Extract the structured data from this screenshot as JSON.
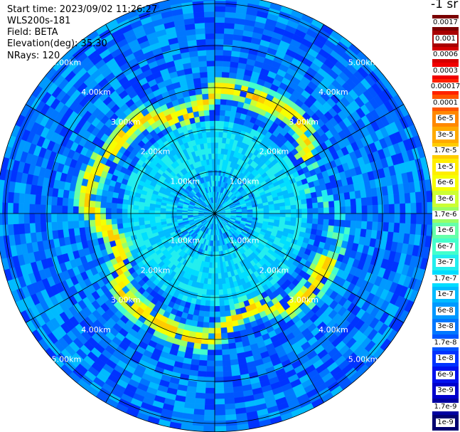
{
  "header": {
    "start_time": "Start time: 2023/09/02 11:26:27",
    "instrument": "WLS200s-181",
    "field": "Field: BETA",
    "elevation": "Elevation(deg): 35.30",
    "nrays": "NRays: 120"
  },
  "colorbar": {
    "unit_label": "-1 sr",
    "levels": [
      {
        "label": "0.0017",
        "color": "#7a0000"
      },
      {
        "label": "0.001",
        "color": "#a80000"
      },
      {
        "label": "0.0006",
        "color": "#d40000"
      },
      {
        "label": "0.0003",
        "color": "#f00000"
      },
      {
        "label": "0.00017",
        "color": "#ff2200"
      },
      {
        "label": "0.0001",
        "color": "#ff5500"
      },
      {
        "label": "6e-5",
        "color": "#ff8800"
      },
      {
        "label": "3e-5",
        "color": "#ffaa00"
      },
      {
        "label": "1.7e-5",
        "color": "#ffcc00"
      },
      {
        "label": "1e-5",
        "color": "#ffee00"
      },
      {
        "label": "6e-6",
        "color": "#f6ff00"
      },
      {
        "label": "3e-6",
        "color": "#ccff33"
      },
      {
        "label": "1.7e-6",
        "color": "#99ff66"
      },
      {
        "label": "1e-6",
        "color": "#66ffaa"
      },
      {
        "label": "6e-7",
        "color": "#44ffcc"
      },
      {
        "label": "3e-7",
        "color": "#22eeee"
      },
      {
        "label": "1.7e-7",
        "color": "#00ddff"
      },
      {
        "label": "1e-7",
        "color": "#00bbff"
      },
      {
        "label": "6e-8",
        "color": "#0099ff"
      },
      {
        "label": "3e-8",
        "color": "#0077ff"
      },
      {
        "label": "1.7e-8",
        "color": "#0055ff"
      },
      {
        "label": "1e-8",
        "color": "#0033ff"
      },
      {
        "label": "6e-9",
        "color": "#0011ee"
      },
      {
        "label": "3e-9",
        "color": "#0000cc"
      },
      {
        "label": "1.7e-9",
        "color": "#0000a0"
      },
      {
        "label": "1e-9",
        "color": "#000070"
      }
    ]
  },
  "chart_data": {
    "type": "heatmap",
    "projection": "polar-ppi",
    "field": "BETA",
    "elevation_deg": 35.3,
    "n_rays": 120,
    "range_max_km": 5.2,
    "range_rings_km": [
      1.0,
      2.0,
      3.0,
      4.0,
      5.0
    ],
    "range_ring_labels": [
      "1.00km",
      "2.00km",
      "3.00km",
      "4.00km",
      "5.00km"
    ],
    "radial_lines_deg": [
      0,
      30,
      60,
      90,
      120,
      150,
      180,
      210,
      240,
      270,
      300,
      330
    ],
    "grid": true,
    "background_level": "3e-8",
    "inner_level": "1.7e-7",
    "cloud_ring": {
      "range_km_min": 2.3,
      "range_km_max": 3.3,
      "peak_level": "3e-5",
      "gap_azimuth_deg": [
        60,
        110
      ]
    },
    "colorbar_placement": "right"
  }
}
